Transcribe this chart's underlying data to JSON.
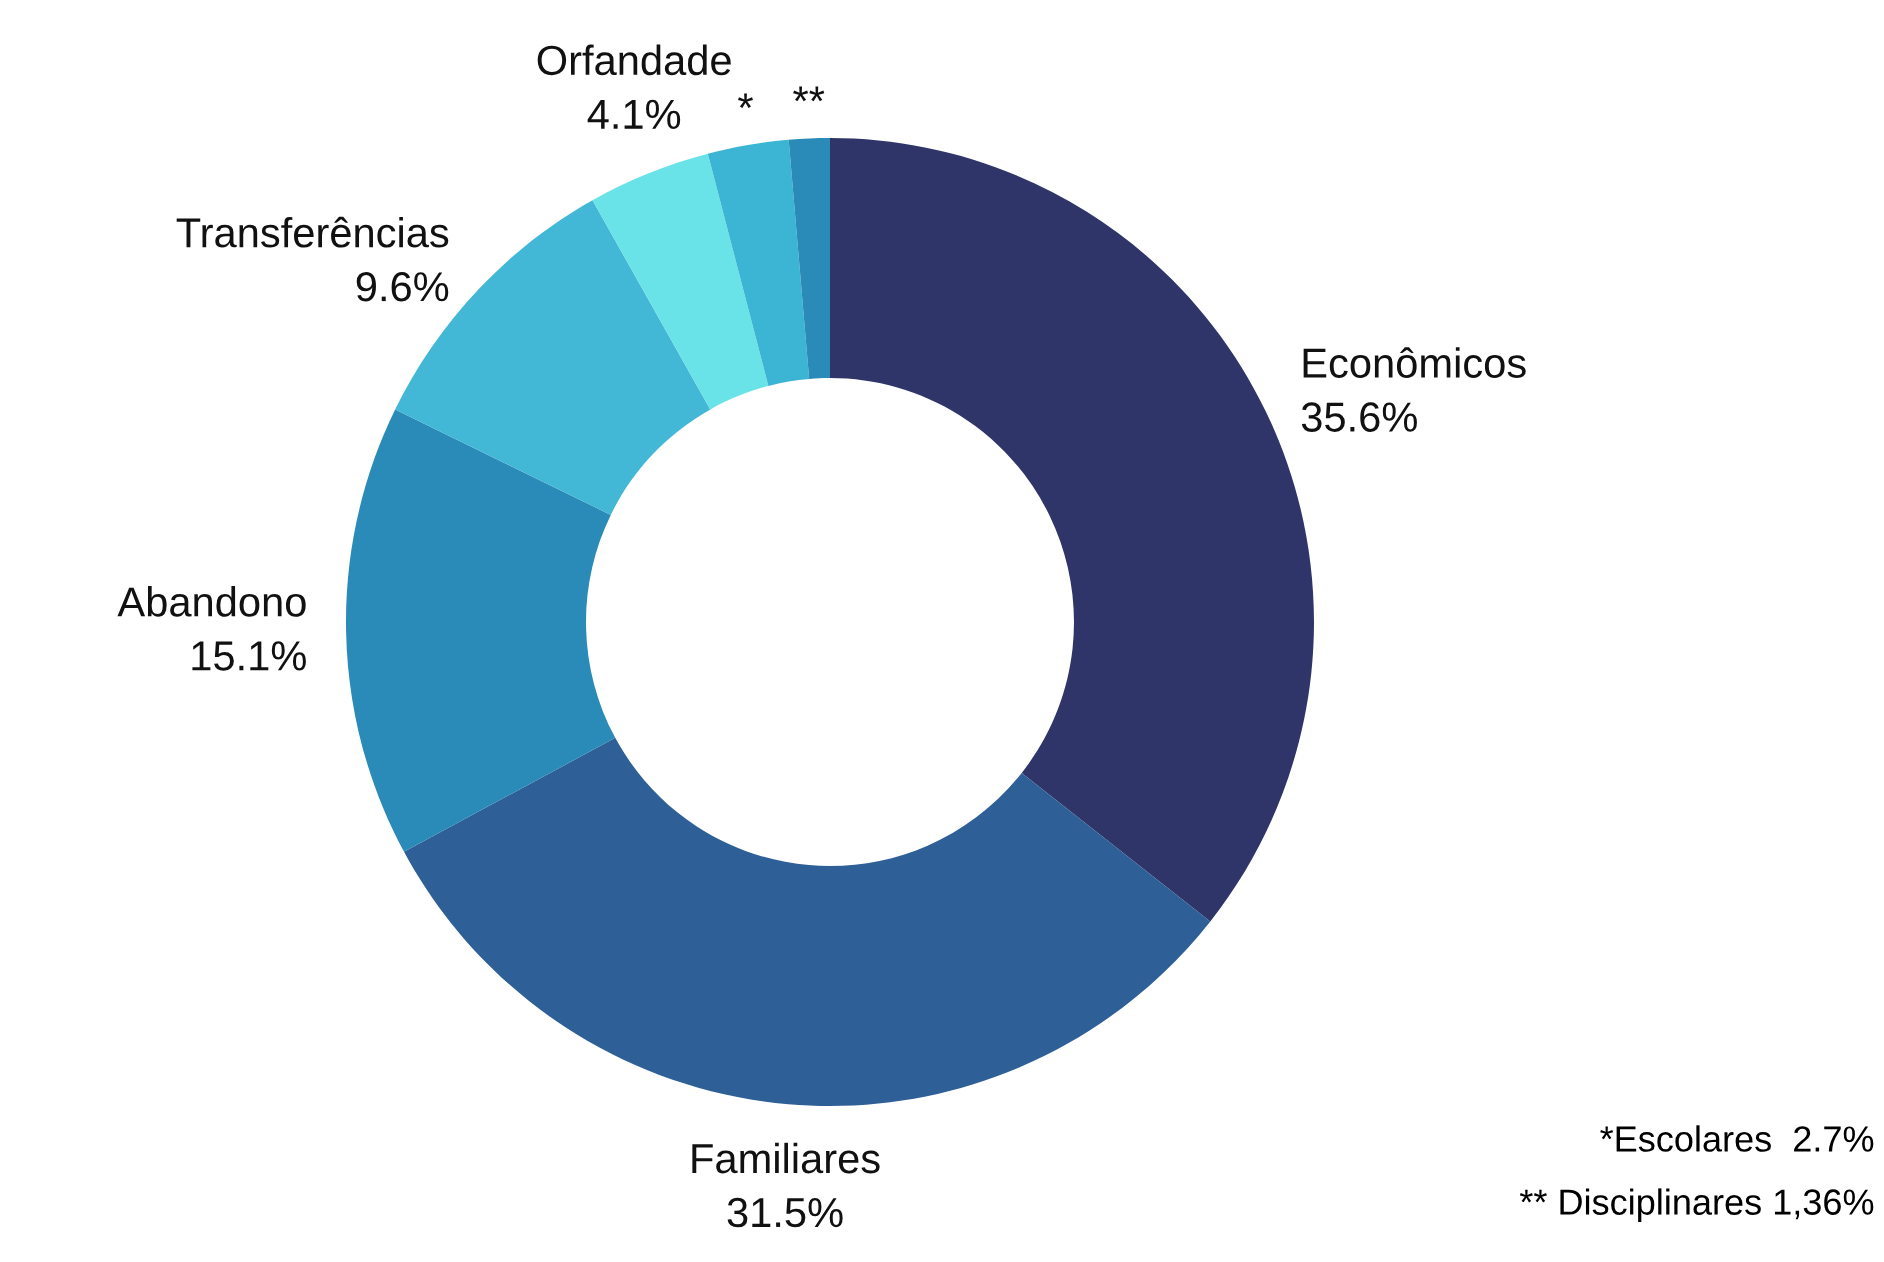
{
  "chart_data": {
    "type": "donut",
    "categories": [
      "Econômicos",
      "Familiares",
      "Abandono",
      "Transferências",
      "Orfandade",
      "*",
      "**"
    ],
    "values": [
      35.6,
      31.5,
      15.1,
      9.6,
      4.1,
      2.7,
      1.36
    ],
    "value_labels": [
      "35.6%",
      "31.5%",
      "15.1%",
      "9.6%",
      "4.1%",
      null,
      null
    ],
    "colors": [
      "#2f3569",
      "#2e5f96",
      "#2a8ab8",
      "#42b7d6",
      "#6ae3e8",
      "#3cb4d4",
      "#2a8ab8"
    ],
    "annotations": [
      "*Escolares  2.7%",
      "** Disciplinares 1,36%"
    ],
    "legend": false
  }
}
